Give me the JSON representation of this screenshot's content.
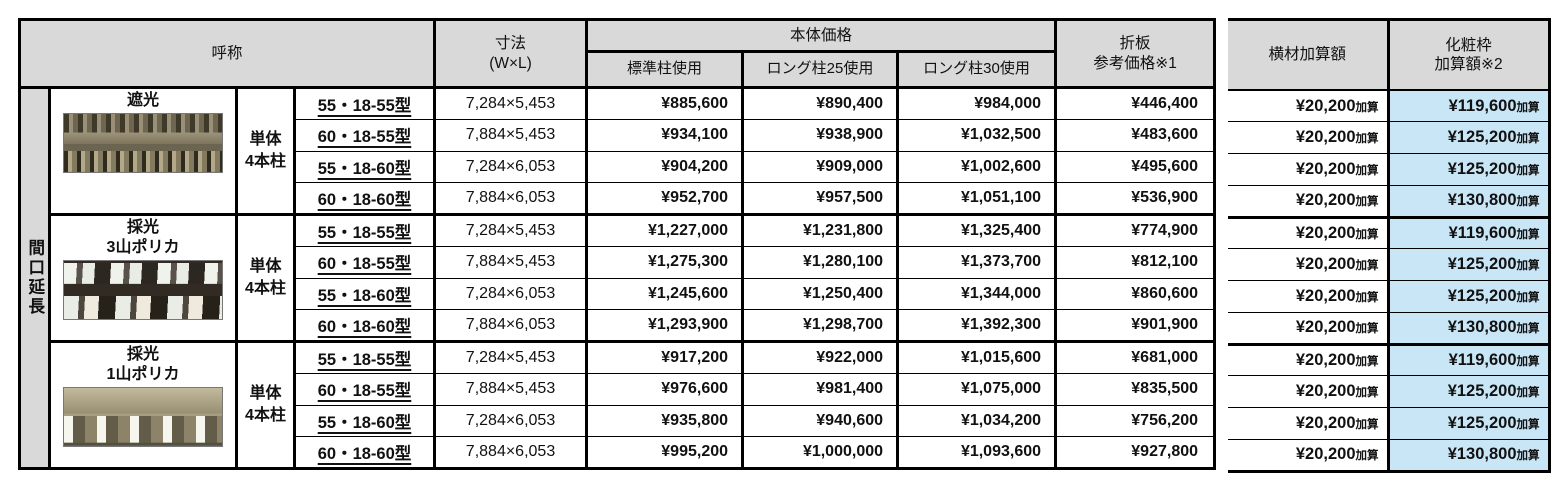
{
  "colors": {
    "header_bg": "#d9d9d9",
    "highlight_bg": "#c9e6f6",
    "border": "#000000"
  },
  "table": {
    "header": {
      "name_label": "呼称",
      "dimension_line1": "寸法",
      "dimension_line2": "(W×L)",
      "body_price_label": "本体価格",
      "col_standard": "標準柱使用",
      "col_long25": "ロング柱25使用",
      "col_long30": "ロング柱30使用",
      "sheet_line1": "折板",
      "sheet_line2": "参考価格※1",
      "crossbeam_label": "横材加算額",
      "frame_line1": "化粧枠",
      "frame_line2": "加算額※2"
    },
    "row_group_label": "間口延長",
    "addition_suffix": "加算",
    "groups": [
      {
        "name_lines": [
          "遮光"
        ],
        "photo_id": "shading",
        "column_type_lines": [
          "単体",
          "4本柱"
        ],
        "rows": [
          {
            "type": "55・18-55型",
            "dimension": "7,284×5,453",
            "standard": "¥885,600",
            "long25": "¥890,400",
            "long30": "¥984,000",
            "sheet": "¥446,400",
            "crossbeam": "¥20,200",
            "frame": "¥119,600"
          },
          {
            "type": "60・18-55型",
            "dimension": "7,884×5,453",
            "standard": "¥934,100",
            "long25": "¥938,900",
            "long30": "¥1,032,500",
            "sheet": "¥483,600",
            "crossbeam": "¥20,200",
            "frame": "¥125,200"
          },
          {
            "type": "55・18-60型",
            "dimension": "7,284×6,053",
            "standard": "¥904,200",
            "long25": "¥909,000",
            "long30": "¥1,002,600",
            "sheet": "¥495,600",
            "crossbeam": "¥20,200",
            "frame": "¥125,200"
          },
          {
            "type": "60・18-60型",
            "dimension": "7,884×6,053",
            "standard": "¥952,700",
            "long25": "¥957,500",
            "long30": "¥1,051,100",
            "sheet": "¥536,900",
            "crossbeam": "¥20,200",
            "frame": "¥130,800"
          }
        ]
      },
      {
        "name_lines": [
          "採光",
          "3山ポリカ"
        ],
        "photo_id": "daylight3",
        "column_type_lines": [
          "単体",
          "4本柱"
        ],
        "rows": [
          {
            "type": "55・18-55型",
            "dimension": "7,284×5,453",
            "standard": "¥1,227,000",
            "long25": "¥1,231,800",
            "long30": "¥1,325,400",
            "sheet": "¥774,900",
            "crossbeam": "¥20,200",
            "frame": "¥119,600"
          },
          {
            "type": "60・18-55型",
            "dimension": "7,884×5,453",
            "standard": "¥1,275,300",
            "long25": "¥1,280,100",
            "long30": "¥1,373,700",
            "sheet": "¥812,100",
            "crossbeam": "¥20,200",
            "frame": "¥125,200"
          },
          {
            "type": "55・18-60型",
            "dimension": "7,284×6,053",
            "standard": "¥1,245,600",
            "long25": "¥1,250,400",
            "long30": "¥1,344,000",
            "sheet": "¥860,600",
            "crossbeam": "¥20,200",
            "frame": "¥125,200"
          },
          {
            "type": "60・18-60型",
            "dimension": "7,884×6,053",
            "standard": "¥1,293,900",
            "long25": "¥1,298,700",
            "long30": "¥1,392,300",
            "sheet": "¥901,900",
            "crossbeam": "¥20,200",
            "frame": "¥130,800"
          }
        ]
      },
      {
        "name_lines": [
          "採光",
          "1山ポリカ"
        ],
        "photo_id": "daylight1",
        "column_type_lines": [
          "単体",
          "4本柱"
        ],
        "rows": [
          {
            "type": "55・18-55型",
            "dimension": "7,284×5,453",
            "standard": "¥917,200",
            "long25": "¥922,000",
            "long30": "¥1,015,600",
            "sheet": "¥681,000",
            "crossbeam": "¥20,200",
            "frame": "¥119,600"
          },
          {
            "type": "60・18-55型",
            "dimension": "7,884×5,453",
            "standard": "¥976,600",
            "long25": "¥981,400",
            "long30": "¥1,075,000",
            "sheet": "¥835,500",
            "crossbeam": "¥20,200",
            "frame": "¥125,200"
          },
          {
            "type": "55・18-60型",
            "dimension": "7,284×6,053",
            "standard": "¥935,800",
            "long25": "¥940,600",
            "long30": "¥1,034,200",
            "sheet": "¥756,200",
            "crossbeam": "¥20,200",
            "frame": "¥125,200"
          },
          {
            "type": "60・18-60型",
            "dimension": "7,884×6,053",
            "standard": "¥995,200",
            "long25": "¥1,000,000",
            "long30": "¥1,093,600",
            "sheet": "¥927,800",
            "crossbeam": "¥20,200",
            "frame": "¥130,800"
          }
        ]
      }
    ]
  }
}
